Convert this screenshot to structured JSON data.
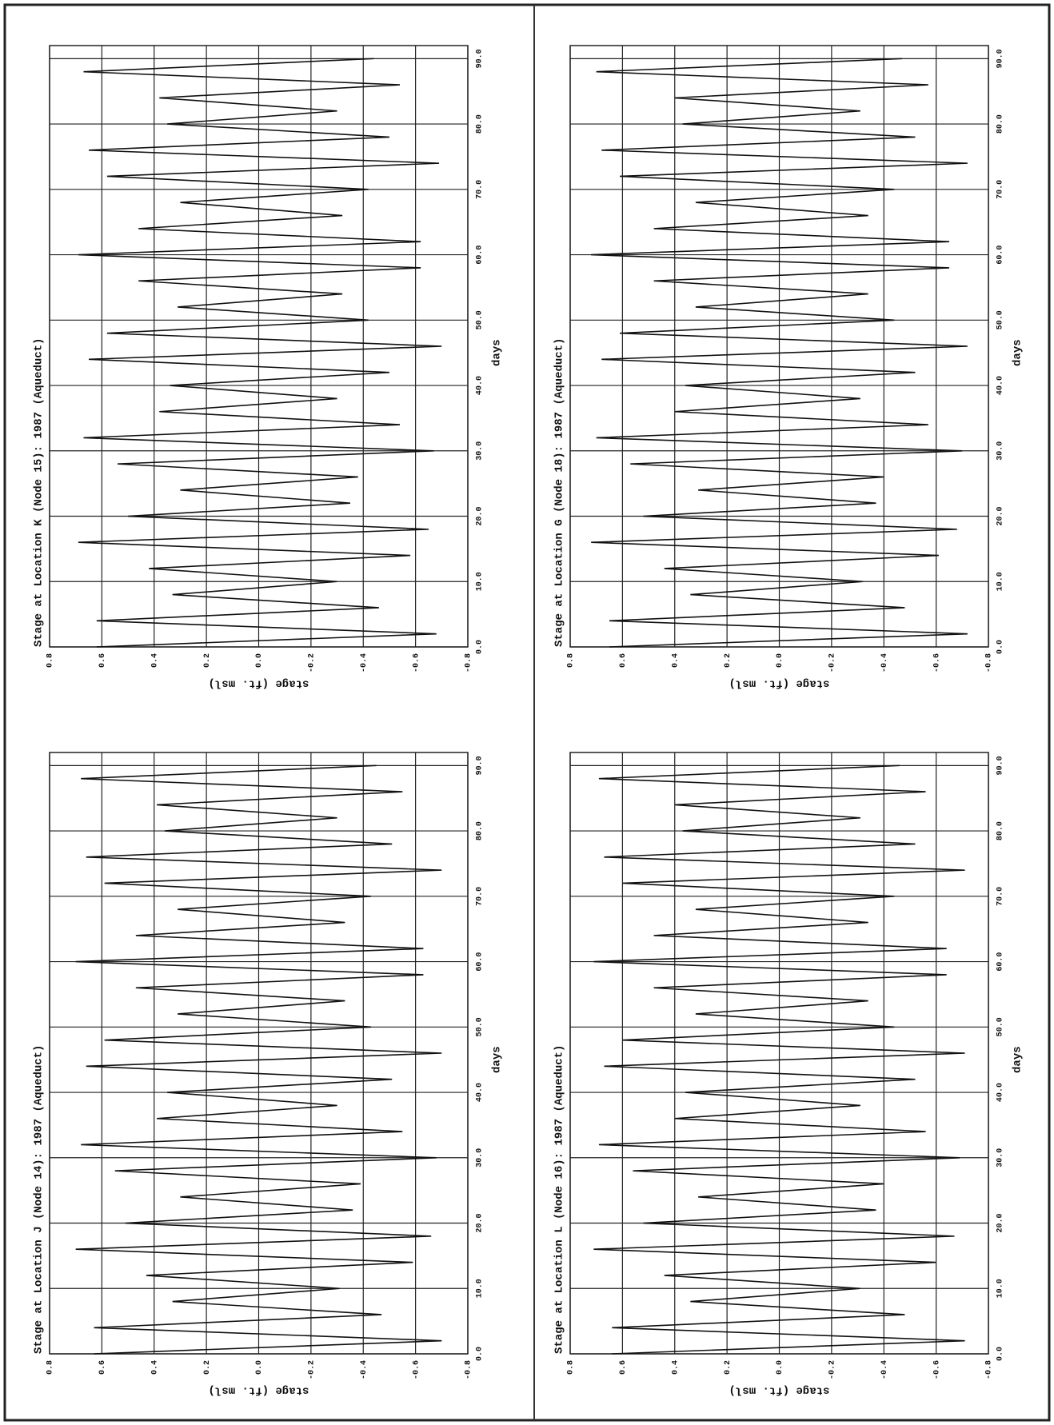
{
  "chart_data": [
    {
      "type": "line",
      "title": "Stage at Location J (Node 14): 1987 (Aqueduct)",
      "x_label": "days",
      "y_label": "stage (ft. msl)",
      "x": [
        0,
        2,
        4,
        6,
        8,
        10,
        12,
        14,
        16,
        18,
        20,
        22,
        24,
        26,
        28,
        30,
        32,
        34,
        36,
        38,
        40,
        42,
        44,
        46,
        48,
        50,
        52,
        54,
        56,
        58,
        60,
        62,
        64,
        66,
        68,
        70,
        72,
        74,
        76,
        78,
        80,
        82,
        84,
        86,
        88,
        90
      ],
      "series": [
        {
          "name": "stage",
          "color": "#111111",
          "values": [
            0.63,
            -0.7,
            0.63,
            -0.47,
            0.33,
            -0.31,
            0.43,
            -0.59,
            0.7,
            -0.66,
            0.51,
            -0.36,
            0.3,
            -0.39,
            0.55,
            -0.68,
            0.68,
            -0.55,
            0.39,
            -0.3,
            0.35,
            -0.51,
            0.66,
            -0.7,
            0.59,
            -0.43,
            0.31,
            -0.33,
            0.47,
            -0.63,
            0.7,
            -0.63,
            0.47,
            -0.33,
            0.31,
            -0.43,
            0.59,
            -0.7,
            0.66,
            -0.51,
            0.36,
            -0.3,
            0.39,
            -0.55,
            0.68,
            -0.45
          ]
        }
      ],
      "xlim": [
        0,
        92
      ],
      "ylim": [
        -0.8,
        0.8
      ],
      "xticks": [
        {
          "value": 0,
          "label": "0.0"
        },
        {
          "value": 10,
          "label": "10.0"
        },
        {
          "value": 20,
          "label": "20.0"
        },
        {
          "value": 30,
          "label": "30.0"
        },
        {
          "value": 40,
          "label": "40.0"
        },
        {
          "value": 50,
          "label": "50.0"
        },
        {
          "value": 60,
          "label": "60.0"
        },
        {
          "value": 70,
          "label": "70.0"
        },
        {
          "value": 80,
          "label": "80.0"
        },
        {
          "value": 90,
          "label": "90.0"
        }
      ],
      "yticks": [
        -0.8,
        -0.6,
        -0.4,
        -0.2,
        {
          "value": 0,
          "label": "0.0"
        },
        0.2,
        0.4,
        0.6,
        0.8
      ],
      "grid": true
    },
    {
      "type": "line",
      "title": "Stage at Location K (Node 15): 1987 (Aqueduct)",
      "x_label": "days",
      "y_label": "stage (ft. msl)",
      "x": [
        0,
        2,
        4,
        6,
        8,
        10,
        12,
        14,
        16,
        18,
        20,
        22,
        24,
        26,
        28,
        30,
        32,
        34,
        36,
        38,
        40,
        42,
        44,
        46,
        48,
        50,
        52,
        54,
        56,
        58,
        60,
        62,
        64,
        66,
        68,
        70,
        72,
        74,
        76,
        78,
        80,
        82,
        84,
        86,
        88,
        90
      ],
      "series": [
        {
          "name": "stage",
          "color": "#111111",
          "values": [
            0.62,
            -0.68,
            0.62,
            -0.46,
            0.33,
            -0.3,
            0.42,
            -0.58,
            0.69,
            -0.65,
            0.5,
            -0.35,
            0.3,
            -0.38,
            0.54,
            -0.67,
            0.67,
            -0.54,
            0.38,
            -0.3,
            0.34,
            -0.5,
            0.65,
            -0.7,
            0.58,
            -0.42,
            0.31,
            -0.32,
            0.46,
            -0.62,
            0.69,
            -0.62,
            0.46,
            -0.32,
            0.3,
            -0.42,
            0.58,
            -0.69,
            0.65,
            -0.5,
            0.35,
            -0.3,
            0.38,
            -0.54,
            0.67,
            -0.44
          ]
        }
      ],
      "xlim": [
        0,
        92
      ],
      "ylim": [
        -0.8,
        0.8
      ],
      "xticks": [
        {
          "value": 0,
          "label": "0.0"
        },
        {
          "value": 10,
          "label": "10.0"
        },
        {
          "value": 20,
          "label": "20.0"
        },
        {
          "value": 30,
          "label": "30.0"
        },
        {
          "value": 40,
          "label": "40.0"
        },
        {
          "value": 50,
          "label": "50.0"
        },
        {
          "value": 60,
          "label": "60.0"
        },
        {
          "value": 70,
          "label": "70.0"
        },
        {
          "value": 80,
          "label": "80.0"
        },
        {
          "value": 90,
          "label": "90.0"
        }
      ],
      "yticks": [
        -0.8,
        -0.6,
        -0.4,
        -0.2,
        {
          "value": 0,
          "label": "0.0"
        },
        0.2,
        0.4,
        0.6,
        0.8
      ],
      "grid": true
    },
    {
      "type": "line",
      "title": "Stage at Location L (Node 16): 1987 (Aqueduct)",
      "x_label": "days",
      "y_label": "stage (ft. msl)",
      "x": [
        0,
        2,
        4,
        6,
        8,
        10,
        12,
        14,
        16,
        18,
        20,
        22,
        24,
        26,
        28,
        30,
        32,
        34,
        36,
        38,
        40,
        42,
        44,
        46,
        48,
        50,
        52,
        54,
        56,
        58,
        60,
        62,
        64,
        66,
        68,
        70,
        72,
        74,
        76,
        78,
        80,
        82,
        84,
        86,
        88,
        90
      ],
      "series": [
        {
          "name": "stage",
          "color": "#111111",
          "values": [
            0.64,
            -0.71,
            0.64,
            -0.48,
            0.34,
            -0.31,
            0.44,
            -0.6,
            0.71,
            -0.67,
            0.52,
            -0.37,
            0.31,
            -0.4,
            0.56,
            -0.69,
            0.69,
            -0.56,
            0.4,
            -0.31,
            0.36,
            -0.52,
            0.67,
            -0.71,
            0.6,
            -0.44,
            0.32,
            -0.34,
            0.48,
            -0.64,
            0.71,
            -0.64,
            0.48,
            -0.34,
            0.32,
            -0.44,
            0.6,
            -0.71,
            0.67,
            -0.52,
            0.37,
            -0.31,
            0.4,
            -0.56,
            0.69,
            -0.46
          ]
        }
      ],
      "xlim": [
        0,
        92
      ],
      "ylim": [
        -0.8,
        0.8
      ],
      "xticks": [
        {
          "value": 0,
          "label": "0.0"
        },
        {
          "value": 10,
          "label": "10.0"
        },
        {
          "value": 20,
          "label": "20.0"
        },
        {
          "value": 30,
          "label": "30.0"
        },
        {
          "value": 40,
          "label": "40.0"
        },
        {
          "value": 50,
          "label": "50.0"
        },
        {
          "value": 60,
          "label": "60.0"
        },
        {
          "value": 70,
          "label": "70.0"
        },
        {
          "value": 80,
          "label": "80.0"
        },
        {
          "value": 90,
          "label": "90.0"
        }
      ],
      "yticks": [
        -0.8,
        -0.6,
        -0.4,
        -0.2,
        {
          "value": 0,
          "label": "0.0"
        },
        0.2,
        0.4,
        0.6,
        0.8
      ],
      "grid": true
    },
    {
      "type": "line",
      "title": "Stage at Location G (Node 18): 1987 (Aqueduct)",
      "x_label": "days",
      "y_label": "stage (ft. msl)",
      "x": [
        0,
        2,
        4,
        6,
        8,
        10,
        12,
        14,
        16,
        18,
        20,
        22,
        24,
        26,
        28,
        30,
        32,
        34,
        36,
        38,
        40,
        42,
        44,
        46,
        48,
        50,
        52,
        54,
        56,
        58,
        60,
        62,
        64,
        66,
        68,
        70,
        72,
        74,
        76,
        78,
        80,
        82,
        84,
        86,
        88,
        90
      ],
      "series": [
        {
          "name": "stage",
          "color": "#111111",
          "values": [
            0.65,
            -0.72,
            0.65,
            -0.48,
            0.34,
            -0.32,
            0.44,
            -0.61,
            0.72,
            -0.68,
            0.52,
            -0.37,
            0.31,
            -0.4,
            0.57,
            -0.7,
            0.7,
            -0.57,
            0.4,
            -0.31,
            0.36,
            -0.52,
            0.68,
            -0.72,
            0.61,
            -0.44,
            0.32,
            -0.34,
            0.48,
            -0.65,
            0.72,
            -0.65,
            0.48,
            -0.34,
            0.32,
            -0.44,
            0.61,
            -0.72,
            0.68,
            -0.52,
            0.37,
            -0.31,
            0.4,
            -0.57,
            0.7,
            -0.47
          ]
        }
      ],
      "xlim": [
        0,
        92
      ],
      "ylim": [
        -0.8,
        0.8
      ],
      "xticks": [
        {
          "value": 0,
          "label": "0.0"
        },
        {
          "value": 10,
          "label": "10.0"
        },
        {
          "value": 20,
          "label": "20.0"
        },
        {
          "value": 30,
          "label": "30.0"
        },
        {
          "value": 40,
          "label": "40.0"
        },
        {
          "value": 50,
          "label": "50.0"
        },
        {
          "value": 60,
          "label": "60.0"
        },
        {
          "value": 70,
          "label": "70.0"
        },
        {
          "value": 80,
          "label": "80.0"
        },
        {
          "value": 90,
          "label": "90.0"
        }
      ],
      "yticks": [
        -0.8,
        -0.6,
        -0.4,
        -0.2,
        {
          "value": 0,
          "label": "0.0"
        },
        0.2,
        0.4,
        0.6,
        0.8
      ],
      "grid": true
    }
  ]
}
